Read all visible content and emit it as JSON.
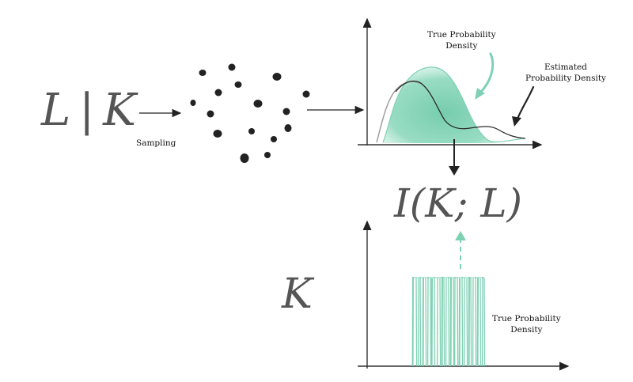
{
  "formula_left": {
    "L": "L",
    "bar": "|",
    "K": "K"
  },
  "formula_mi": "I(K; L)",
  "formula_k": "K",
  "labels": {
    "sampling": "Sampling",
    "true_density_top": [
      "True Probability",
      "Density"
    ],
    "estimated_density": [
      "Estimated",
      "Probability Density"
    ],
    "true_density_bottom": [
      "True Probability",
      "Density"
    ]
  },
  "colors": {
    "teal": "#7fd1b4",
    "ink": "#222222",
    "grey_curve": "#9a9a9a"
  }
}
